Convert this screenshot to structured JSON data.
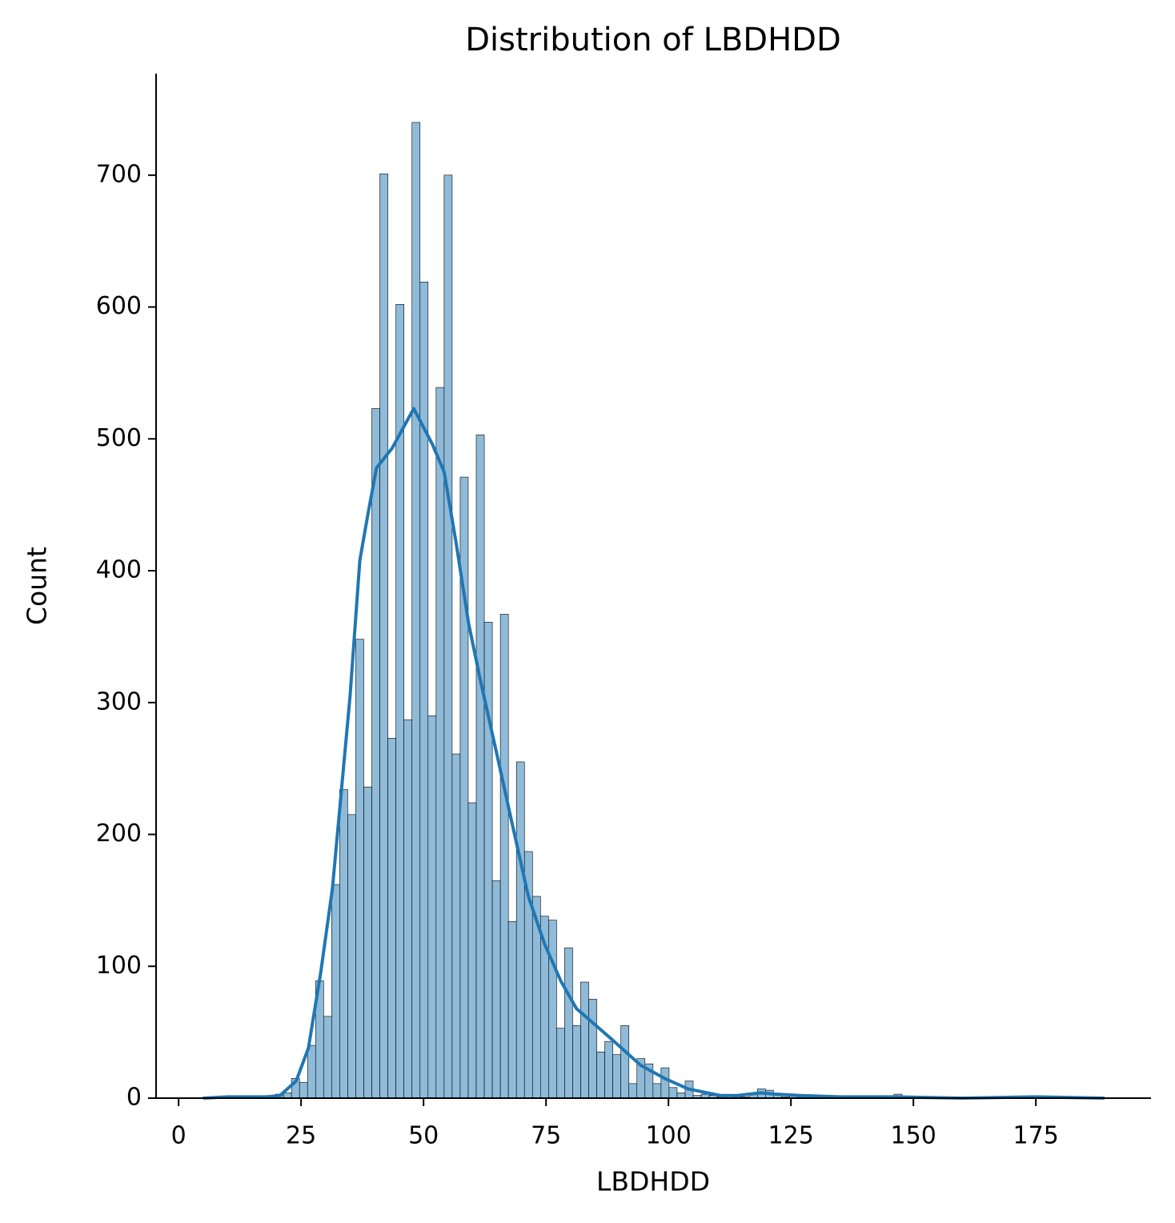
{
  "chart_data": {
    "type": "histogram",
    "title": "Distribution of LBDHDD",
    "xlabel": "LBDHDD",
    "ylabel": "Count",
    "bins": [
      5,
      6.64,
      8.28,
      9.92,
      11.56,
      13.2,
      14.84,
      16.48,
      18.12,
      19.76,
      21.4,
      23.04,
      24.68,
      26.32,
      27.96,
      29.6,
      31.24,
      32.88,
      34.52,
      36.16,
      37.8,
      39.44,
      41.08,
      42.72,
      44.36,
      46,
      47.64,
      49.28,
      50.92,
      52.56,
      54.2,
      55.84,
      57.48,
      59.12,
      60.76,
      62.4,
      64.04,
      65.68,
      67.32,
      68.96,
      70.6,
      72.24,
      73.88,
      75.52,
      77.16,
      78.8,
      80.44,
      82.08,
      83.72,
      85.36,
      87,
      88.64,
      90.28,
      91.92,
      93.56,
      95.2,
      96.84,
      98.48,
      100.12,
      101.76,
      103.4,
      105.04,
      106.68,
      108.32,
      109.96,
      111.6,
      113.24,
      114.88,
      116.52,
      118.16,
      119.8,
      121.44,
      123.08,
      124.72,
      126.36,
      128,
      129.64,
      131.28,
      132.92,
      134.56,
      136.2,
      137.84,
      139.48,
      141.12,
      142.76,
      144.4,
      146.04,
      147.68,
      149.32,
      150.96,
      152.6,
      154.24,
      155.88,
      157.52,
      159.16,
      160.8,
      162.44,
      164.08,
      165.72,
      167.36,
      169,
      170.64,
      172.28,
      173.92,
      175.56,
      177.2,
      178.84,
      180.48,
      182.12,
      183.76,
      185.4,
      187.04,
      188.68
    ],
    "counts": [
      1,
      0,
      0,
      1,
      0,
      0,
      0,
      1,
      2,
      3,
      4,
      15,
      12,
      40,
      89,
      62,
      162,
      234,
      215,
      348,
      236,
      523,
      701,
      273,
      602,
      287,
      740,
      619,
      290,
      539,
      700,
      261,
      471,
      224,
      503,
      361,
      165,
      367,
      134,
      255,
      187,
      153,
      138,
      135,
      53,
      114,
      55,
      88,
      75,
      35,
      43,
      33,
      55,
      11,
      30,
      26,
      11,
      23,
      8,
      4,
      13,
      2,
      3,
      2,
      1,
      2,
      1,
      1,
      3,
      7,
      6,
      3,
      1,
      2,
      1,
      1,
      0,
      0,
      0,
      1,
      0,
      1,
      0,
      0,
      0,
      0,
      3,
      0,
      0,
      0,
      0,
      0,
      0,
      0,
      0,
      1,
      0,
      0,
      1,
      0,
      0,
      0,
      0,
      0,
      0,
      0,
      0,
      0,
      0,
      0,
      0,
      1
    ],
    "color": "#8fbbd9",
    "edgecolor": "#000000",
    "kde": {
      "color": "#1f77b4",
      "x": [
        5,
        10,
        15,
        18,
        20.7,
        24,
        26.5,
        29,
        31.4,
        35,
        37,
        38.7,
        40.4,
        43.6,
        48,
        51.8,
        54.2,
        56.7,
        59.2,
        61.6,
        64.9,
        68.1,
        71.4,
        74.7,
        78,
        81.2,
        87.7,
        94.3,
        99.2,
        104,
        110.6,
        114,
        118.8,
        122,
        127,
        135,
        146,
        160,
        175,
        189
      ],
      "values": [
        0,
        1,
        1,
        1,
        2,
        13,
        38,
        95,
        159,
        305,
        408,
        444,
        478,
        493,
        523,
        496,
        475,
        420,
        360,
        317,
        262,
        208,
        153,
        117,
        89,
        68,
        47,
        25,
        15,
        7,
        2,
        2,
        4,
        3,
        2,
        1,
        1,
        0,
        1,
        0
      ]
    },
    "xlim": [
      -4.6,
      198.5
    ],
    "ylim": [
      0,
      777
    ],
    "xticks": [
      0,
      25,
      50,
      75,
      100,
      125,
      150,
      175
    ],
    "yticks": [
      0,
      100,
      200,
      300,
      400,
      500,
      600,
      700
    ]
  }
}
